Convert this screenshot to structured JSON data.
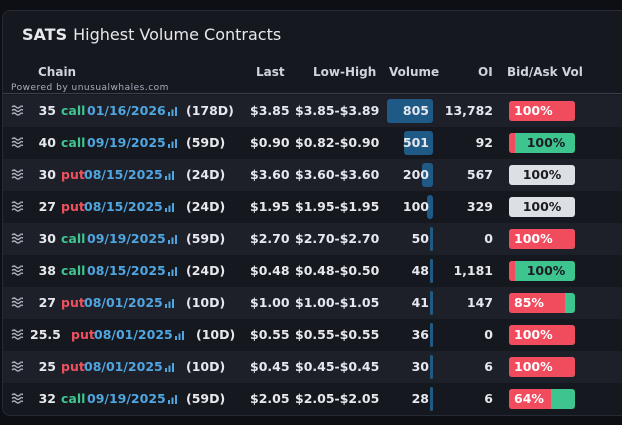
{
  "header": {
    "ticker": "SATS",
    "title": "Highest Volume Contracts"
  },
  "columns": {
    "chain": "Chain",
    "last": "Last",
    "low_high": "Low-High",
    "volume": "Volume",
    "oi": "OI",
    "bid_ask": "Bid/Ask Vol"
  },
  "powered_by": "Powered by unusualwhales.com",
  "volume_max": 805,
  "rows": [
    {
      "strike": "35",
      "type": "call",
      "expiry": "01/16/2026",
      "dte": "(178D)",
      "last": "$3.85",
      "range": "$3.85-$3.89",
      "volume": "805",
      "volume_value": 805,
      "oi": "13,782",
      "ba_label": "100%",
      "bid_frac": 1.0,
      "ba_style": "bid"
    },
    {
      "strike": "40",
      "type": "call",
      "expiry": "09/19/2025",
      "dte": "(59D)",
      "last": "$0.90",
      "range": "$0.82-$0.90",
      "volume": "501",
      "volume_value": 501,
      "oi": "92",
      "ba_label": "100%",
      "bid_frac": 0.0,
      "ba_style": "ask"
    },
    {
      "strike": "30",
      "type": "put",
      "expiry": "08/15/2025",
      "dte": "(24D)",
      "last": "$3.60",
      "range": "$3.60-$3.60",
      "volume": "200",
      "volume_value": 200,
      "oi": "567",
      "ba_label": "100%",
      "bid_frac": 0.0,
      "ba_style": "neutral"
    },
    {
      "strike": "27",
      "type": "put",
      "expiry": "08/15/2025",
      "dte": "(24D)",
      "last": "$1.95",
      "range": "$1.95-$1.95",
      "volume": "100",
      "volume_value": 100,
      "oi": "329",
      "ba_label": "100%",
      "bid_frac": 0.0,
      "ba_style": "neutral"
    },
    {
      "strike": "30",
      "type": "call",
      "expiry": "09/19/2025",
      "dte": "(59D)",
      "last": "$2.70",
      "range": "$2.70-$2.70",
      "volume": "50",
      "volume_value": 50,
      "oi": "0",
      "ba_label": "100%",
      "bid_frac": 1.0,
      "ba_style": "bid"
    },
    {
      "strike": "38",
      "type": "call",
      "expiry": "08/15/2025",
      "dte": "(24D)",
      "last": "$0.48",
      "range": "$0.48-$0.50",
      "volume": "48",
      "volume_value": 48,
      "oi": "1,181",
      "ba_label": "100%",
      "bid_frac": 0.0,
      "ba_style": "ask"
    },
    {
      "strike": "27",
      "type": "put",
      "expiry": "08/01/2025",
      "dte": "(10D)",
      "last": "$1.00",
      "range": "$1.00-$1.05",
      "volume": "41",
      "volume_value": 41,
      "oi": "147",
      "ba_label": "85%",
      "bid_frac": 0.85,
      "ba_style": "bid"
    },
    {
      "strike": "25.5",
      "type": "put",
      "expiry": "08/01/2025",
      "dte": "(10D)",
      "last": "$0.55",
      "range": "$0.55-$0.55",
      "volume": "36",
      "volume_value": 36,
      "oi": "0",
      "ba_label": "100%",
      "bid_frac": 1.0,
      "ba_style": "bid"
    },
    {
      "strike": "25",
      "type": "put",
      "expiry": "08/01/2025",
      "dte": "(10D)",
      "last": "$0.45",
      "range": "$0.45-$0.45",
      "volume": "30",
      "volume_value": 30,
      "oi": "6",
      "ba_label": "100%",
      "bid_frac": 1.0,
      "ba_style": "bid"
    },
    {
      "strike": "32",
      "type": "call",
      "expiry": "09/19/2025",
      "dte": "(59D)",
      "last": "$2.05",
      "range": "$2.05-$2.05",
      "volume": "28",
      "volume_value": 28,
      "oi": "6",
      "ba_label": "64%",
      "bid_frac": 0.64,
      "ba_style": "bid"
    }
  ],
  "colors": {
    "call": "#3ec48e",
    "put": "#f0505e",
    "expiry": "#4fa6e0",
    "volume_bar": "#1f5a86",
    "bid": "#f04c5d",
    "ask": "#3ec48e",
    "neutral": "#dcdfe4"
  }
}
